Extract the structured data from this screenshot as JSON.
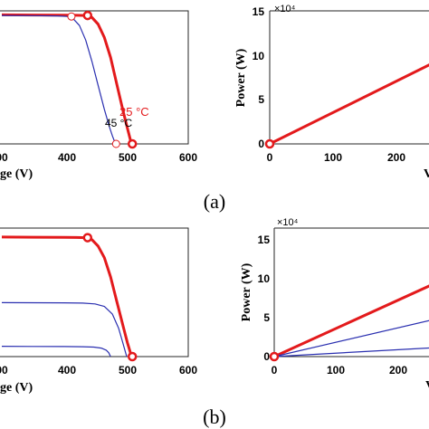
{
  "colors": {
    "red": "#e31a1c",
    "blue": "#2a2fb0",
    "axis": "#262626"
  },
  "chart_data": [
    {
      "type": "line",
      "panel": "a-left",
      "xlabel": "ge (V)",
      "x_ticks": [
        "00",
        "400",
        "500",
        "600"
      ],
      "xlim": [
        300,
        600
      ],
      "ylim": [
        0,
        1
      ],
      "series": [
        {
          "name": "25 °C",
          "x": [
            300,
            350,
            400,
            420,
            435,
            445,
            455,
            465,
            475,
            485,
            495,
            502,
            507,
            510
          ],
          "y": [
            0.97,
            0.969,
            0.968,
            0.967,
            0.965,
            0.95,
            0.9,
            0.8,
            0.65,
            0.45,
            0.25,
            0.12,
            0.03,
            0
          ]
        },
        {
          "name": "45 °C",
          "x": [
            300,
            350,
            390,
            405,
            415,
            425,
            435,
            445,
            455,
            465,
            473,
            478,
            482,
            484
          ],
          "y": [
            0.965,
            0.964,
            0.962,
            0.958,
            0.94,
            0.89,
            0.78,
            0.62,
            0.44,
            0.26,
            0.13,
            0.06,
            0.01,
            0
          ]
        }
      ],
      "markers": [
        {
          "series": "25 °C",
          "x": 438,
          "y": 0.965,
          "style": "filled"
        },
        {
          "series": "25 °C",
          "x": 510,
          "y": 0,
          "style": "filled"
        },
        {
          "series": "45 °C",
          "x": 412,
          "y": 0.958,
          "style": "open"
        },
        {
          "series": "45 °C",
          "x": 484,
          "y": 0,
          "style": "open"
        }
      ],
      "annotations": [
        "25 °C",
        "45 °C"
      ]
    },
    {
      "type": "line",
      "panel": "a-right",
      "ylabel": "Power (W)",
      "xlabel": "V",
      "exponent": "×10⁴",
      "x_ticks": [
        "0",
        "100",
        "200"
      ],
      "y_ticks": [
        "0",
        "5",
        "10",
        "15"
      ],
      "xlim": [
        0,
        270
      ],
      "ylim": [
        0,
        15
      ],
      "series": [
        {
          "name": "",
          "x": [
            0,
            270
          ],
          "y": [
            0,
            9.6
          ]
        }
      ],
      "markers": [
        {
          "x": 0,
          "y": 0,
          "style": "filled"
        }
      ]
    },
    {
      "type": "line",
      "panel": "b-left",
      "xlabel": "ge (V)",
      "x_ticks": [
        "00",
        "400",
        "500",
        "600"
      ],
      "xlim": [
        300,
        600
      ],
      "ylim": [
        0,
        1
      ],
      "series": [
        {
          "name": "red",
          "x": [
            300,
            350,
            400,
            420,
            435,
            445,
            455,
            465,
            475,
            485,
            495,
            502,
            507,
            510
          ],
          "y": [
            0.93,
            0.929,
            0.928,
            0.927,
            0.925,
            0.91,
            0.86,
            0.77,
            0.62,
            0.43,
            0.24,
            0.11,
            0.03,
            0
          ]
        },
        {
          "name": "blue-1",
          "x": [
            300,
            350,
            400,
            430,
            450,
            465,
            478,
            488,
            494,
            498,
            501
          ],
          "y": [
            0.42,
            0.419,
            0.418,
            0.416,
            0.41,
            0.39,
            0.33,
            0.22,
            0.12,
            0.05,
            0
          ]
        },
        {
          "name": "blue-2",
          "x": [
            300,
            350,
            400,
            430,
            448,
            460,
            468,
            472,
            475
          ],
          "y": [
            0.08,
            0.079,
            0.078,
            0.077,
            0.074,
            0.066,
            0.05,
            0.03,
            0
          ]
        }
      ],
      "markers": [
        {
          "series": "red",
          "x": 438,
          "y": 0.925,
          "style": "filled"
        },
        {
          "series": "red",
          "x": 510,
          "y": 0,
          "style": "filled"
        }
      ]
    },
    {
      "type": "line",
      "panel": "b-right",
      "ylabel": "Power (W)",
      "xlabel": "V",
      "exponent": "×10⁴",
      "x_ticks": [
        "0",
        "100",
        "200"
      ],
      "y_ticks": [
        "0",
        "5",
        "10",
        "15"
      ],
      "xlim": [
        0,
        270
      ],
      "ylim": [
        0,
        16.5
      ],
      "series": [
        {
          "name": "red",
          "x": [
            0,
            270
          ],
          "y": [
            0,
            9.8
          ]
        },
        {
          "name": "blue-1",
          "x": [
            0,
            270
          ],
          "y": [
            0,
            5.0
          ]
        },
        {
          "name": "blue-2",
          "x": [
            0,
            270
          ],
          "y": [
            0,
            1.2
          ]
        }
      ],
      "markers": [
        {
          "x": 0,
          "y": 0,
          "style": "filled"
        }
      ]
    }
  ],
  "captions": {
    "a": "(a)",
    "b": "(b)"
  }
}
